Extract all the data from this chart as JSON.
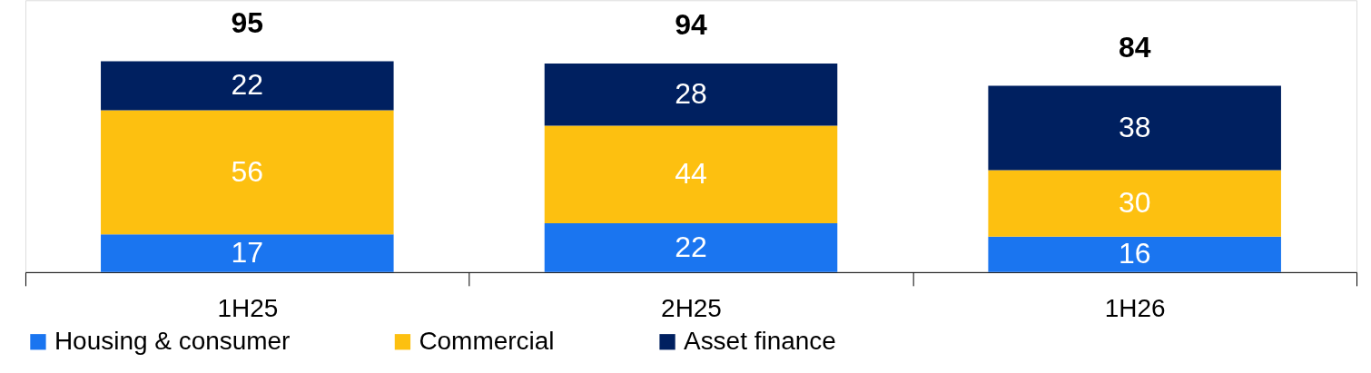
{
  "chart_data": {
    "type": "bar",
    "stacked": true,
    "data_labels": true,
    "legend": "bottom",
    "grid": false,
    "categories": [
      "1H25",
      "2H25",
      "1H26"
    ],
    "series": [
      {
        "name": "Housing & consumer",
        "color": "#1a75f0",
        "values": [
          17,
          22,
          16
        ]
      },
      {
        "name": "Commercial",
        "color": "#fdc010",
        "values": [
          56,
          44,
          30
        ]
      },
      {
        "name": "Asset finance",
        "color": "#002060",
        "values": [
          22,
          28,
          38
        ]
      }
    ],
    "totals": [
      "95",
      "94",
      "84"
    ]
  }
}
